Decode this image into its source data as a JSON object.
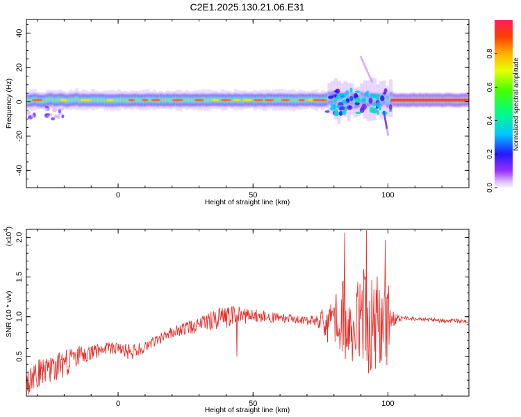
{
  "title": "C2E1.2025.130.21.06.E31",
  "colors": {
    "snr_line": "#e8302a",
    "axes": "#000000",
    "grid_tick": "#000000",
    "spectrogram_background": "#ffffff"
  },
  "chart_data": [
    {
      "type": "heatmap",
      "name": "spectrogram",
      "xlabel": "Height of straight line (km)",
      "ylabel": "Frequency (Hz)",
      "xlim": [
        -34,
        130
      ],
      "ylim": [
        -50,
        48
      ],
      "xticks": [
        0,
        50,
        100
      ],
      "yticks": [
        -40,
        -20,
        0,
        20,
        40
      ],
      "grid": false,
      "colormap": "rainbow (purple-blue-cyan-green-yellow-red)",
      "colorbar": {
        "label": "Normalized spectral amplitude",
        "range": [
          0.0,
          1.0
        ],
        "ticks": [
          0.0,
          0.2,
          0.4,
          0.6,
          0.8
        ],
        "tick_labels": [
          "0.0",
          "0.2",
          "0.4",
          "0.6",
          "0.8"
        ]
      },
      "features": {
        "main_band_center_hz": 1,
        "main_band_halfwidth_hz": 3,
        "disturbed_region_km": [
          77,
          101
        ],
        "streak_near_km": [
          90,
          94
        ],
        "streak_max_hz": 26,
        "low_tail_near_km": 100,
        "low_tail_min_hz": -19
      }
    },
    {
      "type": "line",
      "name": "snr",
      "xlabel": "Height of straight line (km)",
      "ylabel": "SNR (10 * v/v)",
      "y_scale_label": "(x10",
      "y_scale_exponent": "4",
      "xlim": [
        -34,
        130
      ],
      "ylim": [
        0,
        2.1
      ],
      "xticks": [
        0,
        50,
        100
      ],
      "yticks": [
        0.5,
        1.0,
        1.5,
        2.0
      ],
      "ytick_labels": [
        "0.5",
        "1.0",
        "1.5",
        "2.0"
      ],
      "grid": false,
      "series": [
        {
          "x": [
            -34,
            -30,
            -25,
            -20,
            -15,
            -10,
            -5,
            0,
            5,
            10,
            15,
            20,
            25,
            30,
            35,
            40,
            45,
            50,
            55,
            60,
            65,
            70,
            75,
            80,
            85,
            90,
            95,
            100,
            101,
            105,
            110,
            115,
            120,
            125,
            130
          ],
          "values": [
            0.15,
            0.3,
            0.35,
            0.4,
            0.5,
            0.55,
            0.6,
            0.6,
            0.55,
            0.62,
            0.72,
            0.8,
            0.85,
            0.9,
            0.96,
            1.0,
            1.02,
            1.03,
            1.0,
            0.98,
            0.97,
            0.95,
            0.95,
            0.95,
            0.95,
            0.95,
            0.95,
            0.95,
            0.97,
            0.98,
            0.97,
            0.96,
            0.95,
            0.95,
            0.93
          ],
          "noise_amplitude": [
            0.18,
            0.2,
            0.18,
            0.18,
            0.12,
            0.1,
            0.08,
            0.09,
            0.1,
            0.08,
            0.07,
            0.07,
            0.08,
            0.1,
            0.13,
            0.15,
            0.12,
            0.1,
            0.07,
            0.06,
            0.05,
            0.05,
            0.1,
            0.45,
            0.6,
            0.65,
            0.7,
            0.55,
            0.12,
            0.03,
            0.025,
            0.025,
            0.025,
            0.025,
            0.025
          ],
          "notable_points": [
            {
              "x": 44,
              "y": 0.5
            },
            {
              "x": 84,
              "y": 2.06
            },
            {
              "x": 92,
              "y": 2.09
            },
            {
              "x": 99,
              "y": 1.97
            }
          ]
        }
      ]
    }
  ]
}
